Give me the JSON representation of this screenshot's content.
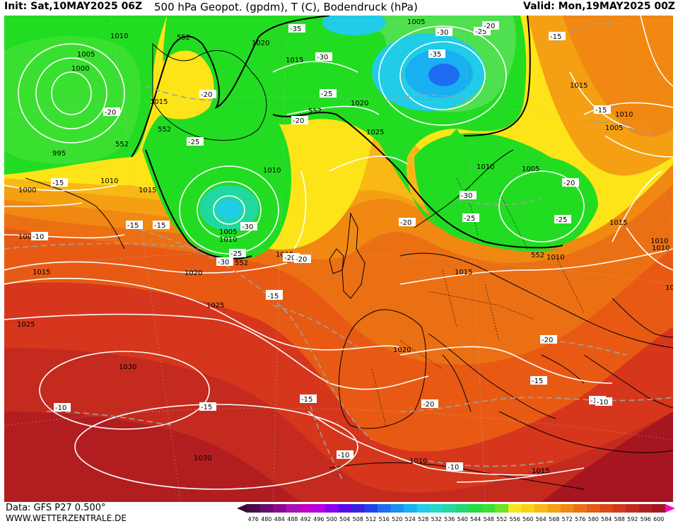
{
  "header": {
    "init": "Init: Sat,10MAY2025 06Z",
    "title": "500 hPa Geopot. (gpdm), T (C), Bodendruck (hPa)",
    "valid": "Valid: Mon,19MAY2025 00Z"
  },
  "footer": {
    "data_source": "Data: GFS P27 0.500°",
    "website": "WWW.WETTERZENTRALE.DE"
  },
  "colors": {
    "dark_red": "#a51620",
    "red": "#d6361c",
    "orange_red": "#e85a14",
    "orange": "#f07f12",
    "amber": "#f5a612",
    "yellow": "#fde419",
    "green": "#22dc22",
    "green_light": "#4ee04e",
    "cyan": "#2ad0e8",
    "blue": "#1aa8ec"
  },
  "scale": {
    "values": [
      "476",
      "480",
      "484",
      "488",
      "492",
      "496",
      "500",
      "504",
      "508",
      "512",
      "516",
      "520",
      "524",
      "528",
      "532",
      "536",
      "540",
      "544",
      "548",
      "552",
      "556",
      "560",
      "564",
      "568",
      "572",
      "576",
      "580",
      "584",
      "588",
      "592",
      "596",
      "600"
    ],
    "colors": [
      "#4a0a4a",
      "#6a0a6e",
      "#8a0a90",
      "#a810b0",
      "#c000c8",
      "#b400e0",
      "#8a00f0",
      "#5a0ae8",
      "#3a20e0",
      "#2044e8",
      "#1e6cf0",
      "#1a90f0",
      "#18b0f0",
      "#20cce8",
      "#22d8c8",
      "#20d8a0",
      "#20d870",
      "#22dc40",
      "#3ae030",
      "#6ae428",
      "#fde419",
      "#fdd016",
      "#f9b814",
      "#f5a012",
      "#f08812",
      "#eb7014",
      "#e55a16",
      "#de4818",
      "#d6361c",
      "#c42a1e",
      "#b21e20",
      "#a51620"
    ],
    "arrow_left_color": "#3a0a3a",
    "arrow_right_color": "#ff00c8"
  },
  "map_labels": {
    "pressure": [
      {
        "text": "1010"
      },
      {
        "text": "1005"
      },
      {
        "text": "1000"
      },
      {
        "text": "995"
      },
      {
        "text": "1000"
      },
      {
        "text": "1005"
      },
      {
        "text": "1010"
      },
      {
        "text": "1015"
      },
      {
        "text": "1015"
      },
      {
        "text": "1020"
      },
      {
        "text": "1025"
      },
      {
        "text": "1030"
      },
      {
        "text": "1030"
      },
      {
        "text": "1025"
      },
      {
        "text": "1020"
      },
      {
        "text": "1015"
      },
      {
        "text": "1010"
      },
      {
        "text": "1005"
      },
      {
        "text": "1000"
      },
      {
        "text": "1010"
      },
      {
        "text": "1020"
      },
      {
        "text": "1015"
      },
      {
        "text": "1015"
      },
      {
        "text": "1020"
      },
      {
        "text": "1025"
      },
      {
        "text": "1005"
      },
      {
        "text": "1015"
      },
      {
        "text": "1010"
      },
      {
        "text": "1005"
      },
      {
        "text": "1010"
      },
      {
        "text": "1005"
      },
      {
        "text": "1015"
      },
      {
        "text": "1010"
      },
      {
        "text": "1010"
      },
      {
        "text": "1010"
      },
      {
        "text": "1020"
      },
      {
        "text": "1015"
      },
      {
        "text": "1010"
      },
      {
        "text": "1015"
      },
      {
        "text": "10"
      }
    ],
    "geopotential": [
      {
        "text": "552"
      },
      {
        "text": "552"
      },
      {
        "text": "552"
      },
      {
        "text": "552"
      },
      {
        "text": "552"
      },
      {
        "text": "552"
      }
    ],
    "temperature": [
      {
        "text": "-20"
      },
      {
        "text": "-15"
      },
      {
        "text": "-10"
      },
      {
        "text": "-15"
      },
      {
        "text": "-25"
      },
      {
        "text": "-20"
      },
      {
        "text": "-30"
      },
      {
        "text": "-25"
      },
      {
        "text": "-20"
      },
      {
        "text": "-35"
      },
      {
        "text": "-30"
      },
      {
        "text": "-25"
      },
      {
        "text": "-20"
      },
      {
        "text": "-30"
      },
      {
        "text": "-35"
      },
      {
        "text": "-30"
      },
      {
        "text": "-25"
      },
      {
        "text": "-20"
      },
      {
        "text": "-20"
      },
      {
        "text": "-15"
      },
      {
        "text": "-30"
      },
      {
        "text": "-25"
      },
      {
        "text": "-20"
      },
      {
        "text": "-25"
      },
      {
        "text": "-20"
      },
      {
        "text": "-15"
      },
      {
        "text": "-15"
      },
      {
        "text": "-20"
      },
      {
        "text": "-15"
      },
      {
        "text": "-10"
      },
      {
        "text": "-15"
      },
      {
        "text": "-10"
      },
      {
        "text": "-15"
      },
      {
        "text": "-10"
      },
      {
        "text": "-15"
      },
      {
        "text": "-10"
      },
      {
        "text": "-10"
      },
      {
        "text": "-15"
      },
      {
        "text": "-20"
      }
    ]
  }
}
